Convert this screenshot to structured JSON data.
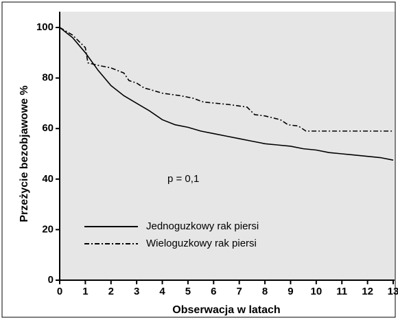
{
  "chart_data": {
    "type": "line",
    "x_label": "Obserwacja w latach",
    "y_label": "Przeżycie bezobjawowe %",
    "annotation": "p = 0,1",
    "xlim": [
      0,
      13
    ],
    "ylim": [
      0,
      100
    ],
    "xticks": [
      0,
      1,
      2,
      3,
      4,
      5,
      6,
      7,
      8,
      9,
      10,
      11,
      12,
      13
    ],
    "yticks": [
      0,
      20,
      40,
      60,
      80,
      100
    ],
    "legend": "lower left",
    "background": "#e6e6e6",
    "series": [
      {
        "name": "Jednoguzkowy rak piersi",
        "color": "#000000",
        "linestyle": "solid",
        "x": [
          0,
          0.5,
          1,
          1.5,
          2,
          2.5,
          3,
          3.5,
          4,
          4.5,
          5,
          5.5,
          6,
          6.5,
          7,
          7.5,
          8,
          8.5,
          9,
          9.5,
          10,
          10.5,
          11,
          11.5,
          12,
          12.5,
          13
        ],
        "values": [
          100,
          96,
          90,
          83,
          77,
          73,
          70,
          67,
          63.5,
          61.5,
          60.5,
          59,
          58,
          57,
          56,
          55,
          54,
          53.5,
          53,
          52,
          51.5,
          50.5,
          50,
          49.5,
          49,
          48.5,
          47.5
        ]
      },
      {
        "name": "Wieloguzkowy rak piersi",
        "color": "#000000",
        "linestyle": "dashdot",
        "x": [
          0,
          0.5,
          1,
          1.1,
          1.5,
          2,
          2.5,
          2.7,
          3,
          3.3,
          3.5,
          4,
          4.7,
          5.2,
          5.6,
          6.6,
          7.3,
          7.6,
          8,
          8.6,
          8.9,
          9.3,
          9.6,
          13
        ],
        "values": [
          100,
          97,
          92,
          86,
          85,
          84,
          82,
          79,
          78,
          76,
          75.5,
          74,
          73,
          72,
          70.5,
          69.5,
          68.5,
          65.5,
          65,
          63.5,
          61.5,
          61,
          59,
          59
        ]
      }
    ]
  }
}
